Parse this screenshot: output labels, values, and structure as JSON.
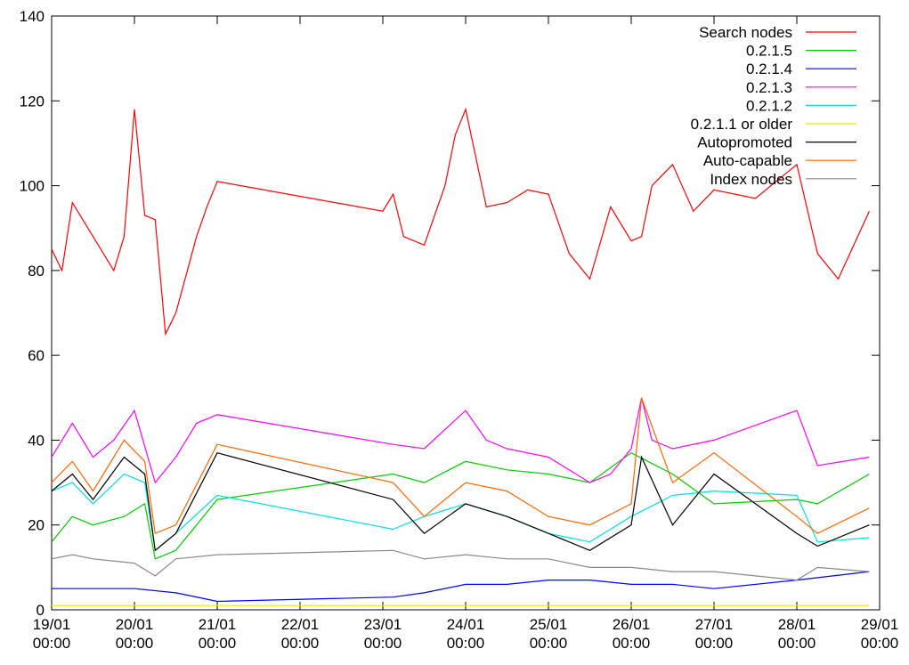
{
  "chart_data": {
    "type": "line",
    "title": "",
    "xlabel": "",
    "ylabel": "",
    "ylim": [
      0,
      140
    ],
    "yticks": [
      0,
      20,
      40,
      60,
      80,
      100,
      120,
      140
    ],
    "xlim": [
      "19/01 00:00",
      "29/01 00:00"
    ],
    "xticks": [
      {
        "date": "19/01",
        "time": "00:00"
      },
      {
        "date": "20/01",
        "time": "00:00"
      },
      {
        "date": "21/01",
        "time": "00:00"
      },
      {
        "date": "22/01",
        "time": "00:00"
      },
      {
        "date": "23/01",
        "time": "00:00"
      },
      {
        "date": "24/01",
        "time": "00:00"
      },
      {
        "date": "25/01",
        "time": "00:00"
      },
      {
        "date": "26/01",
        "time": "00:00"
      },
      {
        "date": "27/01",
        "time": "00:00"
      },
      {
        "date": "28/01",
        "time": "00:00"
      },
      {
        "date": "29/01",
        "time": "00:00"
      }
    ],
    "legend_position": "top-right",
    "grid": false,
    "series": [
      {
        "name": "Search nodes",
        "color": "#ff0000",
        "x": [
          "19/01 00:00",
          "19/01 03:00",
          "19/01 06:00",
          "19/01 12:00",
          "19/01 18:00",
          "19/01 21:00",
          "20/01 00:00",
          "20/01 03:00",
          "20/01 06:00",
          "20/01 09:00",
          "20/01 12:00",
          "20/01 18:00",
          "20/01 21:00",
          "21/01 00:00",
          "23/01 00:00",
          "23/01 03:00",
          "23/01 06:00",
          "23/01 12:00",
          "23/01 18:00",
          "23/01 21:00",
          "24/01 00:00",
          "24/01 06:00",
          "24/01 12:00",
          "24/01 18:00",
          "25/01 00:00",
          "25/01 06:00",
          "25/01 12:00",
          "25/01 18:00",
          "26/01 00:00",
          "26/01 03:00",
          "26/01 06:00",
          "26/01 12:00",
          "26/01 18:00",
          "27/01 00:00",
          "27/01 12:00",
          "28/01 00:00",
          "28/01 06:00",
          "28/01 12:00",
          "28/01 21:00"
        ],
        "y": [
          85,
          80,
          96,
          88,
          80,
          88,
          118,
          93,
          92,
          65,
          70,
          88,
          95,
          101,
          94,
          98,
          88,
          86,
          100,
          112,
          118,
          95,
          96,
          99,
          98,
          84,
          78,
          95,
          87,
          88,
          100,
          105,
          94,
          99,
          97,
          105,
          84,
          78,
          94
        ]
      },
      {
        "name": "0.2.1.5",
        "color": "#00cc00",
        "x": [
          "19/01 00:00",
          "19/01 06:00",
          "19/01 12:00",
          "19/01 21:00",
          "20/01 03:00",
          "20/01 06:00",
          "20/01 12:00",
          "21/01 00:00",
          "23/01 03:00",
          "23/01 12:00",
          "24/01 00:00",
          "24/01 12:00",
          "25/01 00:00",
          "25/01 12:00",
          "26/01 00:00",
          "26/01 12:00",
          "27/01 00:00",
          "28/01 00:00",
          "28/01 06:00",
          "28/01 21:00"
        ],
        "y": [
          16,
          22,
          20,
          22,
          25,
          12,
          14,
          26,
          32,
          30,
          35,
          33,
          32,
          30,
          37,
          32,
          25,
          26,
          25,
          32
        ]
      },
      {
        "name": "0.2.1.4",
        "color": "#0000ff",
        "x": [
          "19/01 00:00",
          "19/01 12:00",
          "20/01 00:00",
          "20/01 12:00",
          "21/01 00:00",
          "23/01 03:00",
          "23/01 12:00",
          "24/01 00:00",
          "24/01 12:00",
          "25/01 00:00",
          "25/01 12:00",
          "26/01 00:00",
          "26/01 12:00",
          "27/01 00:00",
          "28/01 00:00",
          "28/01 21:00"
        ],
        "y": [
          5,
          5,
          5,
          4,
          2,
          3,
          4,
          6,
          6,
          7,
          7,
          6,
          6,
          5,
          7,
          9
        ]
      },
      {
        "name": "0.2.1.3",
        "color": "#ff00ff",
        "x": [
          "19/01 00:00",
          "19/01 06:00",
          "19/01 12:00",
          "19/01 18:00",
          "20/01 00:00",
          "20/01 06:00",
          "20/01 12:00",
          "20/01 18:00",
          "21/01 00:00",
          "23/01 03:00",
          "23/01 12:00",
          "24/01 00:00",
          "24/01 06:00",
          "24/01 12:00",
          "25/01 00:00",
          "25/01 06:00",
          "25/01 12:00",
          "25/01 18:00",
          "26/01 00:00",
          "26/01 03:00",
          "26/01 06:00",
          "26/01 12:00",
          "27/01 00:00",
          "28/01 00:00",
          "28/01 06:00",
          "28/01 21:00"
        ],
        "y": [
          36,
          44,
          36,
          40,
          47,
          30,
          36,
          44,
          46,
          39,
          38,
          47,
          40,
          38,
          36,
          33,
          30,
          32,
          38,
          50,
          40,
          38,
          40,
          47,
          34,
          36
        ]
      },
      {
        "name": "0.2.1.2",
        "color": "#00e0e0",
        "x": [
          "19/01 00:00",
          "19/01 06:00",
          "19/01 12:00",
          "19/01 21:00",
          "20/01 03:00",
          "20/01 06:00",
          "20/01 12:00",
          "21/01 00:00",
          "23/01 03:00",
          "23/01 12:00",
          "24/01 00:00",
          "24/01 12:00",
          "25/01 00:00",
          "25/01 12:00",
          "26/01 00:00",
          "26/01 12:00",
          "27/01 00:00",
          "28/01 00:00",
          "28/01 06:00",
          "28/01 21:00"
        ],
        "y": [
          28,
          30,
          25,
          32,
          30,
          14,
          18,
          27,
          19,
          22,
          25,
          22,
          18,
          16,
          22,
          27,
          28,
          27,
          16,
          17
        ]
      },
      {
        "name": "0.2.1.1 or older",
        "color": "#e8e800",
        "x": [
          "19/01 00:00",
          "28/01 21:00"
        ],
        "y": [
          1,
          1
        ]
      },
      {
        "name": "Autopromoted",
        "color": "#000000",
        "x": [
          "19/01 00:00",
          "19/01 06:00",
          "19/01 12:00",
          "19/01 21:00",
          "20/01 03:00",
          "20/01 06:00",
          "20/01 12:00",
          "21/01 00:00",
          "23/01 03:00",
          "23/01 12:00",
          "24/01 00:00",
          "24/01 12:00",
          "25/01 00:00",
          "25/01 12:00",
          "26/01 00:00",
          "26/01 03:00",
          "26/01 12:00",
          "27/01 00:00",
          "28/01 00:00",
          "28/01 06:00",
          "28/01 21:00"
        ],
        "y": [
          28,
          32,
          26,
          36,
          32,
          14,
          18,
          37,
          26,
          18,
          25,
          22,
          18,
          14,
          20,
          36,
          20,
          32,
          18,
          15,
          20
        ]
      },
      {
        "name": "Auto-capable",
        "color": "#ff6600",
        "x": [
          "19/01 00:00",
          "19/01 06:00",
          "19/01 12:00",
          "19/01 21:00",
          "20/01 03:00",
          "20/01 06:00",
          "20/01 12:00",
          "21/01 00:00",
          "23/01 03:00",
          "23/01 12:00",
          "24/01 00:00",
          "24/01 12:00",
          "25/01 00:00",
          "25/01 12:00",
          "26/01 00:00",
          "26/01 03:00",
          "26/01 12:00",
          "27/01 00:00",
          "28/01 00:00",
          "28/01 06:00",
          "28/01 21:00"
        ],
        "y": [
          30,
          35,
          28,
          40,
          35,
          18,
          20,
          39,
          30,
          22,
          30,
          28,
          22,
          20,
          25,
          50,
          30,
          37,
          22,
          18,
          24
        ]
      },
      {
        "name": "Index nodes",
        "color": "#888888",
        "x": [
          "19/01 00:00",
          "19/01 06:00",
          "19/01 12:00",
          "20/01 00:00",
          "20/01 06:00",
          "20/01 12:00",
          "21/01 00:00",
          "23/01 03:00",
          "23/01 12:00",
          "24/01 00:00",
          "24/01 12:00",
          "25/01 00:00",
          "25/01 12:00",
          "26/01 00:00",
          "26/01 12:00",
          "27/01 00:00",
          "28/01 00:00",
          "28/01 06:00",
          "28/01 21:00"
        ],
        "y": [
          12,
          13,
          12,
          11,
          8,
          12,
          13,
          14,
          12,
          13,
          12,
          12,
          10,
          10,
          9,
          9,
          7,
          10,
          9
        ]
      }
    ]
  }
}
